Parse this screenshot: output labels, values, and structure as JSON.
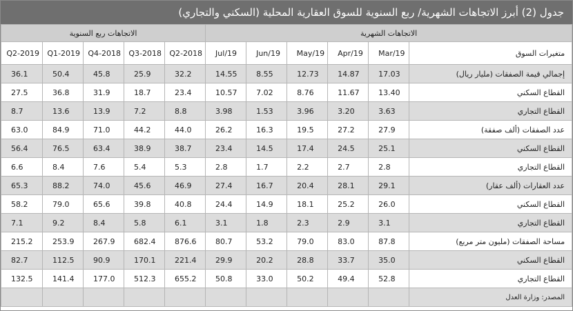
{
  "title": "جدول (2) أبرز الاتجاهات الشهرية/ ربع السنوية للسوق العقارية المحلية (السكني والتجاري)",
  "groups": {
    "monthly": "الاتجاهات الشهرية",
    "quarterly": "الاتجاهات ربع السنوية"
  },
  "columns": {
    "label": "متغيرات السوق",
    "monthly": [
      "Mar/19",
      "Apr/19",
      "May/19",
      "Jun/19",
      "Jul/19"
    ],
    "quarterly": [
      "2018-Q2",
      "2018-Q3",
      "2018-Q4",
      "2019-Q1",
      "2019-Q2"
    ]
  },
  "rows": [
    {
      "label": "إجمالي قيمة الصفقات (مليار ريال)",
      "monthly": [
        "17.03",
        "14.87",
        "12.73",
        "8.55",
        "14.55"
      ],
      "quarterly": [
        "32.2",
        "25.9",
        "45.8",
        "50.4",
        "36.1"
      ]
    },
    {
      "label": "القطاع السكني",
      "monthly": [
        "13.40",
        "11.67",
        "8.76",
        "7.02",
        "10.57"
      ],
      "quarterly": [
        "23.4",
        "18.7",
        "31.9",
        "36.8",
        "27.5"
      ]
    },
    {
      "label": "القطاع التجاري",
      "monthly": [
        "3.63",
        "3.20",
        "3.96",
        "1.53",
        "3.98"
      ],
      "quarterly": [
        "8.8",
        "7.2",
        "13.9",
        "13.6",
        "8.7"
      ]
    },
    {
      "label": "عدد الصفقات (ألف صفقة)",
      "monthly": [
        "27.9",
        "27.2",
        "19.5",
        "16.3",
        "26.2"
      ],
      "quarterly": [
        "44.0",
        "44.2",
        "71.0",
        "84.9",
        "63.0"
      ]
    },
    {
      "label": "القطاع السكني",
      "monthly": [
        "25.1",
        "24.5",
        "17.4",
        "14.5",
        "23.4"
      ],
      "quarterly": [
        "38.7",
        "38.9",
        "63.4",
        "76.5",
        "56.4"
      ]
    },
    {
      "label": "القطاع التجاري",
      "monthly": [
        "2.8",
        "2.7",
        "2.2",
        "1.7",
        "2.8"
      ],
      "quarterly": [
        "5.3",
        "5.4",
        "7.6",
        "8.4",
        "6.6"
      ]
    },
    {
      "label": "عدد العقارات (ألف عقار)",
      "monthly": [
        "29.1",
        "28.1",
        "20.4",
        "16.7",
        "27.4"
      ],
      "quarterly": [
        "46.9",
        "45.6",
        "74.0",
        "88.2",
        "65.3"
      ]
    },
    {
      "label": "القطاع السكني",
      "monthly": [
        "26.0",
        "25.2",
        "18.1",
        "14.9",
        "24.4"
      ],
      "quarterly": [
        "40.8",
        "39.8",
        "65.6",
        "79.0",
        "58.2"
      ]
    },
    {
      "label": "القطاع التجاري",
      "monthly": [
        "3.1",
        "2.9",
        "2.3",
        "1.8",
        "3.1"
      ],
      "quarterly": [
        "6.1",
        "5.8",
        "8.4",
        "9.2",
        "7.1"
      ]
    },
    {
      "label": "مساحة الصفقات (مليون متر مربع)",
      "monthly": [
        "87.8",
        "83.0",
        "79.0",
        "53.2",
        "80.7"
      ],
      "quarterly": [
        "876.6",
        "682.4",
        "267.9",
        "253.9",
        "215.2"
      ]
    },
    {
      "label": "القطاع السكني",
      "monthly": [
        "35.0",
        "33.7",
        "28.8",
        "20.2",
        "29.9"
      ],
      "quarterly": [
        "221.4",
        "170.1",
        "90.9",
        "112.5",
        "82.7"
      ]
    },
    {
      "label": "القطاع التجاري",
      "monthly": [
        "52.8",
        "49.4",
        "50.2",
        "33.0",
        "50.8"
      ],
      "quarterly": [
        "655.2",
        "512.3",
        "177.0",
        "141.4",
        "132.5"
      ]
    }
  ],
  "source": "المصدر: وزارة العدل"
}
